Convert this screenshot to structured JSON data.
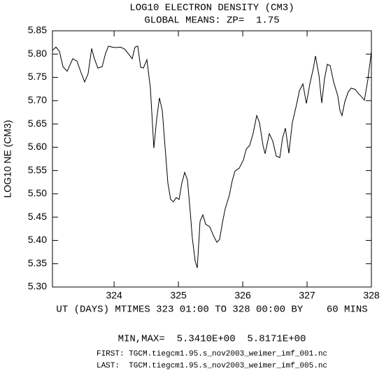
{
  "chart_data": {
    "type": "line",
    "title": "LOG10 ELECTRON DENSITY (CM3)",
    "subtitle": "GLOBAL MEANS: ZP=  1.75",
    "y_label": "LOG10 NE (CM3)",
    "x_label": "UT (DAYS) MTIMES 323 01:00 TO 328 00:00 BY    60 MINS",
    "annotations": [
      "MIN,MAX=  5.3410E+00  5.8171E+00",
      "FIRST: TGCM.tiegcm1.95.s_nov2003_weimer_imf_001.nc",
      "LAST:  TGCM.tiegcm1.95.s_nov2003_weimer_imf_005.nc"
    ],
    "xlim": [
      323.0417,
      328
    ],
    "xticks": [
      324,
      325,
      326,
      327,
      328
    ],
    "ylim": [
      5.3,
      5.85
    ],
    "yticks": [
      {
        "value": 5.3,
        "label": "5.30"
      },
      5.35,
      {
        "value": 5.4,
        "label": "5.40"
      },
      5.45,
      {
        "value": 5.5,
        "label": "5.50"
      },
      5.55,
      {
        "value": 5.6,
        "label": "5.60"
      },
      5.65,
      {
        "value": 5.7,
        "label": "5.70"
      },
      5.75,
      {
        "value": 5.8,
        "label": "5.80"
      },
      5.85
    ],
    "color": "#000000",
    "x": [
      323.042,
      323.096,
      323.15,
      323.205,
      323.27,
      323.357,
      323.422,
      323.487,
      323.542,
      323.596,
      323.651,
      323.694,
      323.748,
      323.814,
      323.868,
      323.912,
      323.966,
      324.031,
      324.096,
      324.162,
      324.227,
      324.281,
      324.325,
      324.368,
      324.412,
      324.455,
      324.51,
      324.564,
      324.618,
      324.662,
      324.705,
      324.749,
      324.792,
      324.836,
      324.879,
      324.923,
      324.966,
      325.01,
      325.053,
      325.097,
      325.14,
      325.184,
      325.216,
      325.26,
      325.293,
      325.336,
      325.38,
      325.423,
      325.488,
      325.542,
      325.597,
      325.64,
      325.684,
      325.727,
      325.793,
      325.836,
      325.88,
      325.945,
      326.01,
      326.054,
      326.108,
      326.163,
      326.217,
      326.26,
      326.315,
      326.347,
      326.413,
      326.467,
      326.521,
      326.576,
      326.619,
      326.663,
      326.717,
      326.771,
      326.837,
      326.88,
      326.935,
      326.989,
      327.043,
      327.098,
      327.13,
      327.185,
      327.228,
      327.272,
      327.315,
      327.359,
      327.413,
      327.478,
      327.511,
      327.543,
      327.587,
      327.641,
      327.685,
      327.75,
      327.793,
      327.837,
      327.891,
      327.946,
      328.0
    ],
    "values": [
      5.808,
      5.815,
      5.806,
      5.773,
      5.763,
      5.79,
      5.785,
      5.76,
      5.74,
      5.758,
      5.812,
      5.79,
      5.77,
      5.773,
      5.802,
      5.817,
      5.815,
      5.814,
      5.815,
      5.811,
      5.8,
      5.79,
      5.815,
      5.817,
      5.772,
      5.77,
      5.788,
      5.727,
      5.598,
      5.661,
      5.706,
      5.679,
      5.601,
      5.523,
      5.488,
      5.483,
      5.492,
      5.488,
      5.523,
      5.546,
      5.53,
      5.461,
      5.405,
      5.356,
      5.341,
      5.441,
      5.455,
      5.435,
      5.429,
      5.411,
      5.396,
      5.402,
      5.438,
      5.468,
      5.498,
      5.528,
      5.549,
      5.555,
      5.573,
      5.596,
      5.604,
      5.631,
      5.668,
      5.653,
      5.604,
      5.586,
      5.629,
      5.613,
      5.581,
      5.578,
      5.62,
      5.641,
      5.587,
      5.653,
      5.692,
      5.721,
      5.736,
      5.694,
      5.736,
      5.77,
      5.796,
      5.754,
      5.695,
      5.748,
      5.778,
      5.775,
      5.74,
      5.71,
      5.679,
      5.668,
      5.698,
      5.719,
      5.727,
      5.724,
      5.716,
      5.71,
      5.701,
      5.746,
      5.806
    ]
  }
}
